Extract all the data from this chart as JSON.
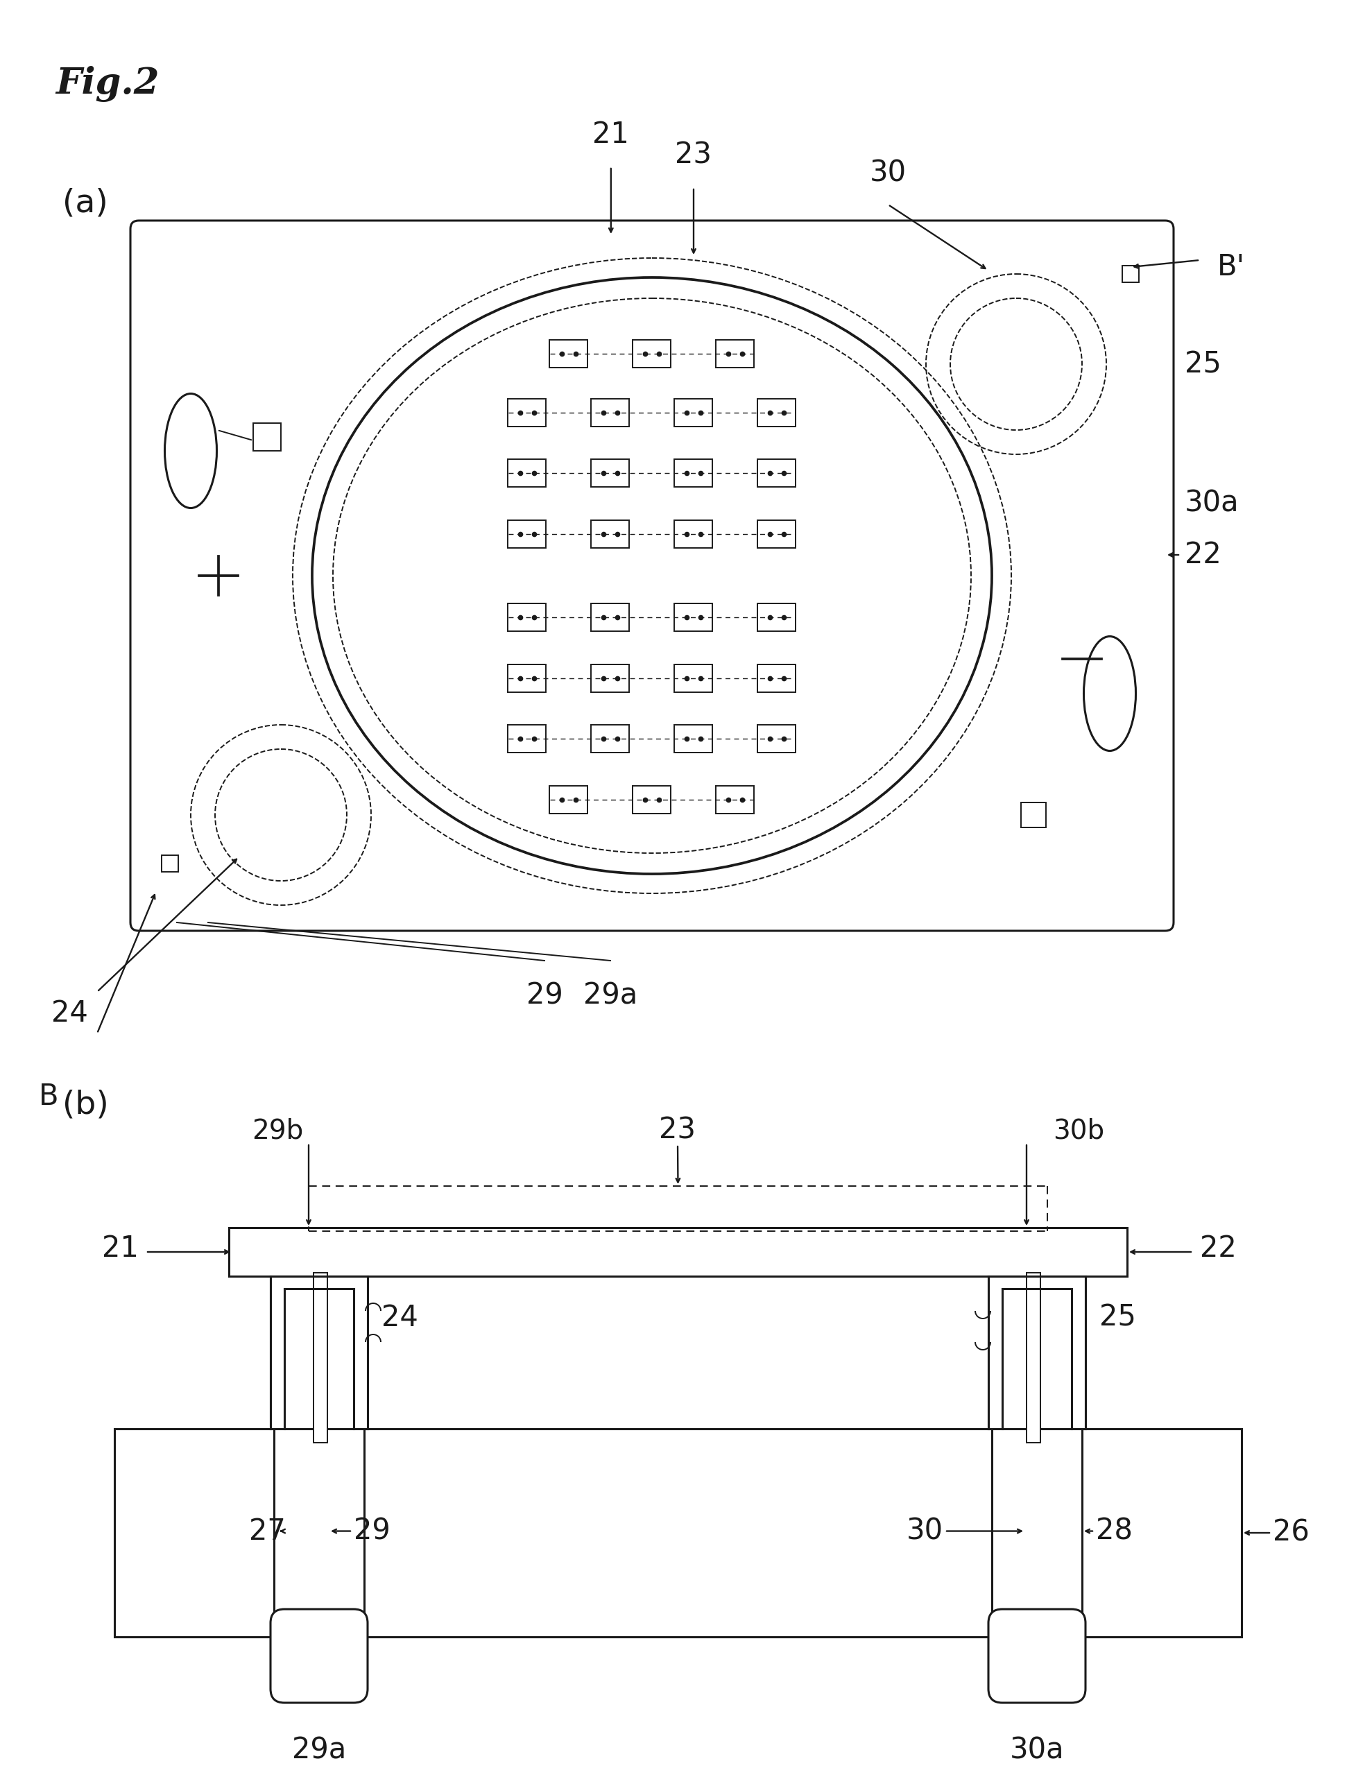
{
  "fig_title": "Fig.2",
  "bg_color": "#ffffff",
  "line_color": "#1a1a1a",
  "label_a": "(a)",
  "label_b": "(b)",
  "labels": {
    "21_top": "21",
    "23_top": "23",
    "30_top": "30",
    "Bp": "B'",
    "25": "25",
    "30a_r": "30a",
    "22": "22",
    "24": "24",
    "29": "29",
    "29a_bot": "29a",
    "B": "B",
    "23b": "23",
    "29b": "29b",
    "30b": "30b",
    "21b": "21",
    "22b": "22",
    "24b": "24",
    "25b": "25",
    "27": "27",
    "29c": "29",
    "30c": "30",
    "28": "28",
    "26": "26",
    "29a": "29a",
    "30a": "30a"
  }
}
